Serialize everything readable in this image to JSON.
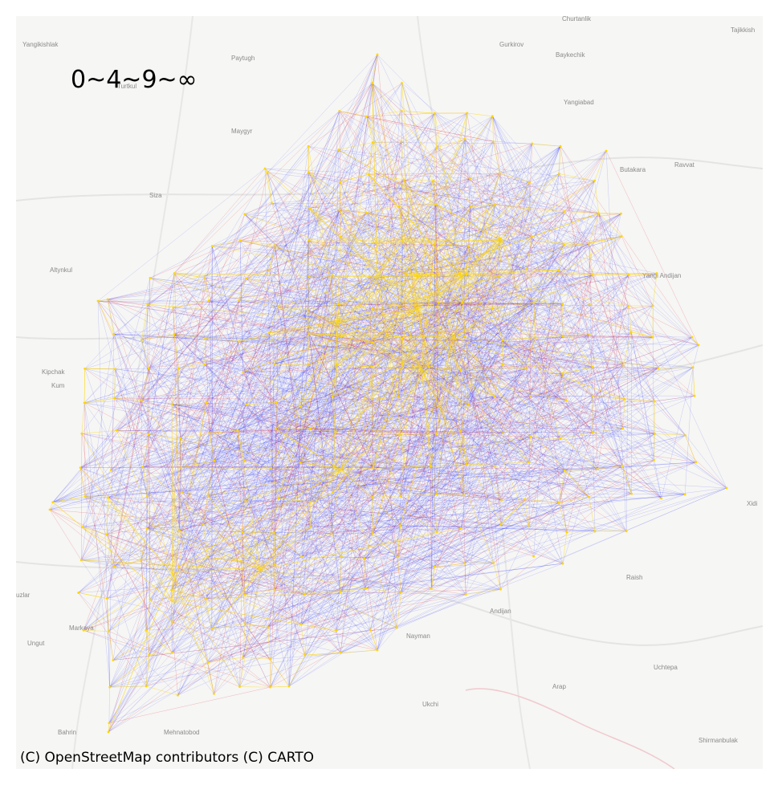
{
  "map": {
    "legend_label": "0~4~9~∞",
    "attribution": "(C) OpenStreetMap contributors (C) CARTO",
    "basemap_style": "CARTO light (Positron)",
    "edge_colors": {
      "low": "#1f2bff",
      "mid": "#e0102a",
      "high": "#ffd700"
    },
    "place_labels": [
      "Churtanlik",
      "Tajikkish",
      "Yangikishlak",
      "Paytugh",
      "Gurkirov",
      "Baykechik",
      "Turtkul",
      "Yangiabad",
      "Maygyr",
      "Butakara",
      "Ravvat",
      "Siza",
      "Altynkul",
      "Yangi Andijan",
      "Kipchak",
      "Kum",
      "Xidi",
      "uzlar",
      "Raish",
      "Andijan",
      "Ungut",
      "Markaya",
      "Nayman",
      "Uchtepa",
      "Arap",
      "Ukchi",
      "Bahrin",
      "Mehnatobod",
      "Shirmanbulak"
    ]
  }
}
